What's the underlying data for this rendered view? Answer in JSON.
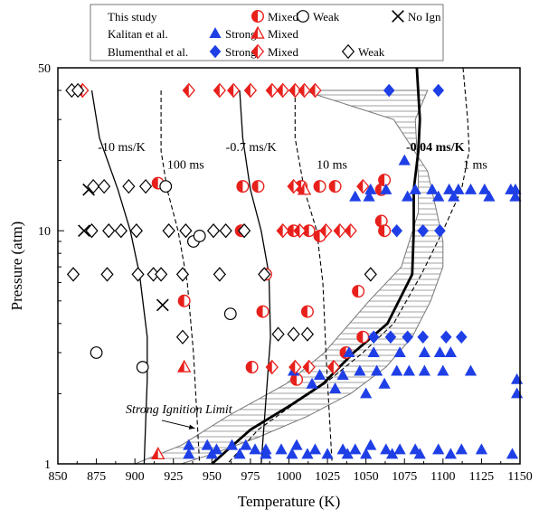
{
  "chart_data": {
    "type": "scatter",
    "title": "",
    "xlabel": "Temperature (K)",
    "ylabel": "Pressure (atm)",
    "xlim": [
      850,
      1150
    ],
    "ylim": [
      1,
      50
    ],
    "yscale": "log",
    "xticks": [
      850,
      875,
      900,
      925,
      950,
      975,
      1000,
      1025,
      1050,
      1075,
      1100,
      1125,
      1150
    ],
    "yticks": [
      1,
      10,
      50
    ],
    "grid": false,
    "legend": {
      "placement": "top",
      "groups": [
        {
          "label": "This study",
          "entries": [
            {
              "marker": "circle-half",
              "color": "#e8201c",
              "label": "Mixed"
            },
            {
              "marker": "circle-open",
              "color": "#000000",
              "label": "Weak"
            },
            {
              "marker": "x",
              "color": "#000000",
              "label": "No Ign"
            }
          ]
        },
        {
          "label": "Kalitan et al.",
          "entries": [
            {
              "marker": "triangle",
              "color": "#1f3fe6",
              "label": "Strong"
            },
            {
              "marker": "triangle-half",
              "color": "#e8201c",
              "label": "Mixed"
            }
          ]
        },
        {
          "label": "Blumenthal et al.",
          "entries": [
            {
              "marker": "diamond",
              "color": "#1f3fe6",
              "label": "Strong"
            },
            {
              "marker": "diamond-half",
              "color": "#e8201c",
              "label": "Mixed"
            },
            {
              "marker": "diamond-open",
              "color": "#000000",
              "label": "Weak"
            }
          ]
        }
      ]
    },
    "annotations": [
      {
        "text": "-10 ms/K",
        "x": 876,
        "y": 22
      },
      {
        "text": "100 ms",
        "x": 921,
        "y": 18.5
      },
      {
        "text": "-0.7 ms/K",
        "x": 959,
        "y": 22
      },
      {
        "text": "10 ms",
        "x": 1018,
        "y": 18.5
      },
      {
        "text": "-0.04 ms/K",
        "x": 1076,
        "y": 22,
        "bold": true
      },
      {
        "text": "1 ms",
        "x": 1113,
        "y": 18.5
      },
      {
        "text": "Strong Ignition Limit",
        "x": 894,
        "y": 1.65,
        "italic": true
      }
    ],
    "series": [
      {
        "name": "This study Mixed",
        "marker": "circle-half",
        "color": "#e8201c",
        "points": [
          [
            915,
            16
          ],
          [
            970,
            15.5
          ],
          [
            980,
            15.5
          ],
          [
            1008,
            15.5
          ],
          [
            1020,
            15.5
          ],
          [
            1030,
            15.5
          ],
          [
            1060,
            15
          ],
          [
            1062,
            16.5
          ],
          [
            969,
            10
          ],
          [
            1003,
            10
          ],
          [
            1013,
            10
          ],
          [
            1020,
            9.5
          ],
          [
            1060,
            11
          ],
          [
            1062,
            10
          ],
          [
            985,
            6.5
          ],
          [
            932,
            5
          ],
          [
            983,
            4.5
          ],
          [
            1012,
            4.5
          ],
          [
            1045,
            5.5
          ],
          [
            1048,
            3.5
          ],
          [
            1037,
            3
          ],
          [
            976,
            2.6
          ],
          [
            1005,
            2.3
          ]
        ]
      },
      {
        "name": "This study Weak",
        "marker": "circle-open",
        "color": "#000000",
        "points": [
          [
            920,
            15.5
          ],
          [
            938,
            9
          ],
          [
            942,
            9.5
          ],
          [
            875,
            3
          ],
          [
            905,
            2.6
          ],
          [
            962,
            4.4
          ]
        ]
      },
      {
        "name": "This study No Ign",
        "marker": "x",
        "color": "#000000",
        "points": [
          [
            870,
            15
          ],
          [
            867,
            10
          ],
          [
            918,
            4.8
          ]
        ]
      },
      {
        "name": "Kalitan et al. Strong",
        "marker": "triangle",
        "color": "#1f3fe6",
        "points": [
          [
            1075,
            20
          ],
          [
            1053,
            15
          ],
          [
            1063,
            15
          ],
          [
            1082,
            15
          ],
          [
            1093,
            15
          ],
          [
            1104,
            15
          ],
          [
            1110,
            15
          ],
          [
            1118,
            15
          ],
          [
            1127,
            15
          ],
          [
            1144,
            15
          ],
          [
            1147,
            15
          ],
          [
            1043,
            14
          ],
          [
            1052,
            14
          ],
          [
            1077,
            14
          ],
          [
            1097,
            14
          ],
          [
            1107,
            14
          ],
          [
            1130,
            14
          ],
          [
            1147,
            14
          ],
          [
            1039,
            3
          ],
          [
            1055,
            3
          ],
          [
            1072,
            3
          ],
          [
            1088,
            3
          ],
          [
            1098,
            3
          ],
          [
            1105,
            3
          ],
          [
            1003,
            2.5
          ],
          [
            1020,
            2.4
          ],
          [
            1035,
            2.4
          ],
          [
            1046,
            2.5
          ],
          [
            1057,
            2.5
          ],
          [
            1070,
            2.5
          ],
          [
            1078,
            2.5
          ],
          [
            1088,
            2.5
          ],
          [
            1100,
            2.5
          ],
          [
            1118,
            2.5
          ],
          [
            1148,
            2.3
          ],
          [
            1148,
            2.0
          ],
          [
            1015,
            2.2
          ],
          [
            1030,
            2.1
          ],
          [
            1050,
            2.0
          ],
          [
            1062,
            2.2
          ],
          [
            935,
            1.2
          ],
          [
            947,
            1.2
          ],
          [
            953,
            1.15
          ],
          [
            963,
            1.2
          ],
          [
            972,
            1.2
          ],
          [
            978,
            1.15
          ],
          [
            985,
            1.15
          ],
          [
            995,
            1.15
          ],
          [
            1005,
            1.2
          ],
          [
            1017,
            1.15
          ],
          [
            1035,
            1.15
          ],
          [
            1043,
            1.15
          ],
          [
            1053,
            1.2
          ],
          [
            1063,
            1.15
          ],
          [
            1072,
            1.15
          ],
          [
            1082,
            1.15
          ],
          [
            1097,
            1.15
          ],
          [
            1112,
            1.15
          ],
          [
            1125,
            1.15
          ],
          [
            1145,
            1.1
          ],
          [
            935,
            1.1
          ],
          [
            950,
            1.1
          ],
          [
            968,
            1.1
          ],
          [
            985,
            1.1
          ],
          [
            1002,
            1.1
          ],
          [
            1012,
            1.1
          ],
          [
            1025,
            1.1
          ],
          [
            1038,
            1.1
          ],
          [
            1050,
            1.1
          ],
          [
            1067,
            1.1
          ],
          [
            1085,
            1.1
          ],
          [
            1105,
            1.1
          ]
        ]
      },
      {
        "name": "Kalitan et al. Mixed",
        "marker": "triangle-half",
        "color": "#e8201c",
        "points": [
          [
            932,
            2.6
          ],
          [
            1010,
            15
          ],
          [
            915,
            1.1
          ]
        ]
      },
      {
        "name": "Blumenthal et al. Strong",
        "marker": "diamond",
        "color": "#1f3fe6",
        "points": [
          [
            1065,
            40
          ],
          [
            1097,
            40
          ],
          [
            1070,
            10
          ],
          [
            1087,
            10
          ],
          [
            1098,
            10
          ],
          [
            1055,
            3.5
          ],
          [
            1066,
            3.5
          ],
          [
            1077,
            3.5
          ],
          [
            1087,
            3.5
          ],
          [
            1102,
            3.5
          ],
          [
            1112,
            3.5
          ]
        ]
      },
      {
        "name": "Blumenthal et al. Mixed",
        "marker": "diamond-half",
        "color": "#e8201c",
        "points": [
          [
            866,
            40
          ],
          [
            935,
            40
          ],
          [
            955,
            40
          ],
          [
            964,
            40
          ],
          [
            975,
            40
          ],
          [
            989,
            40
          ],
          [
            996,
            40
          ],
          [
            1004,
            40
          ],
          [
            1010,
            40
          ],
          [
            1017,
            40
          ],
          [
            996,
            10
          ],
          [
            1007,
            10
          ],
          [
            1024,
            10
          ],
          [
            1033,
            10
          ],
          [
            1040,
            10
          ],
          [
            1003,
            15.5
          ],
          [
            1048,
            15.5
          ],
          [
            1004,
            2.6
          ],
          [
            1013,
            2.6
          ],
          [
            989,
            2.6
          ],
          [
            1029,
            2.6
          ]
        ]
      },
      {
        "name": "Blumenthal et al. Weak",
        "marker": "diamond-open",
        "color": "#000000",
        "points": [
          [
            859,
            40
          ],
          [
            863,
            40
          ],
          [
            873,
            15.5
          ],
          [
            880,
            15.5
          ],
          [
            896,
            15.5
          ],
          [
            907,
            15.5
          ],
          [
            872,
            10
          ],
          [
            883,
            10
          ],
          [
            891,
            10
          ],
          [
            901,
            10
          ],
          [
            922,
            10
          ],
          [
            933,
            10
          ],
          [
            951,
            10
          ],
          [
            959,
            10
          ],
          [
            971,
            10
          ],
          [
            860,
            6.5
          ],
          [
            882,
            6.5
          ],
          [
            902,
            6.5
          ],
          [
            912,
            6.5
          ],
          [
            917,
            6.5
          ],
          [
            931,
            6.5
          ],
          [
            955,
            6.5
          ],
          [
            984,
            6.5
          ],
          [
            1053,
            6.5
          ],
          [
            993,
            3.6
          ],
          [
            1003,
            3.6
          ],
          [
            1012,
            3.6
          ],
          [
            931,
            3.5
          ]
        ]
      }
    ],
    "lines": [
      {
        "name": "-10 ms/K",
        "style": "solid",
        "points": [
          [
            872,
            40
          ],
          [
            877,
            25
          ],
          [
            889,
            15
          ],
          [
            897,
            10
          ],
          [
            903,
            6.5
          ],
          [
            908,
            3.5
          ],
          [
            908,
            2.3
          ],
          [
            906,
            1
          ]
        ]
      },
      {
        "name": "100 ms",
        "style": "dashed",
        "points": [
          [
            917,
            40
          ],
          [
            917,
            22
          ],
          [
            921,
            15
          ],
          [
            928,
            10
          ],
          [
            934,
            6
          ],
          [
            938,
            3
          ],
          [
            942,
            1
          ]
        ]
      },
      {
        "name": "-0.7 ms/K",
        "style": "solid",
        "points": [
          [
            968,
            40
          ],
          [
            970,
            25
          ],
          [
            975,
            15
          ],
          [
            982,
            10
          ],
          [
            987,
            6.5
          ],
          [
            988,
            3.5
          ],
          [
            986,
            2.3
          ],
          [
            982,
            1
          ]
        ]
      },
      {
        "name": "10 ms",
        "style": "dashed",
        "points": [
          [
            1004,
            40
          ],
          [
            1004,
            25
          ],
          [
            1010,
            15
          ],
          [
            1018,
            10
          ],
          [
            1022,
            6
          ],
          [
            1024,
            3
          ],
          [
            1028,
            1
          ]
        ]
      },
      {
        "name": "-0.04 ms/K",
        "style": "solid-thick",
        "points": [
          [
            1083,
            50
          ],
          [
            1085,
            30
          ],
          [
            1084,
            22
          ],
          [
            1081,
            15
          ],
          [
            1081,
            10
          ],
          [
            1080,
            6.5
          ],
          [
            1064,
            4
          ],
          [
            1042,
            3
          ],
          [
            1022,
            2.2
          ],
          [
            1002,
            1.8
          ],
          [
            975,
            1.4
          ],
          [
            950,
            1
          ]
        ]
      },
      {
        "name": "1 ms",
        "style": "dashed",
        "points": [
          [
            1113,
            50
          ],
          [
            1116,
            30
          ],
          [
            1117,
            22
          ],
          [
            1112,
            15
          ],
          [
            1100,
            10
          ],
          [
            1086,
            6.5
          ],
          [
            1068,
            4
          ],
          [
            1048,
            3
          ],
          [
            1023,
            2.2
          ],
          [
            1003,
            1.8
          ],
          [
            980,
            1.4
          ],
          [
            960,
            1
          ]
        ]
      }
    ],
    "strong_ignition_region": [
      [
        1009,
        40
      ],
      [
        1090,
        40
      ],
      [
        1082,
        30
      ],
      [
        1084,
        17
      ],
      [
        1084,
        12
      ],
      [
        1073,
        7
      ],
      [
        1052,
        5
      ],
      [
        1023,
        3
      ],
      [
        998,
        2.2
      ],
      [
        960,
        1.6
      ],
      [
        930,
        1.2
      ],
      [
        900,
        1
      ],
      [
        930,
        1
      ],
      [
        950,
        1.1
      ],
      [
        980,
        1.3
      ],
      [
        1012,
        1.6
      ],
      [
        1040,
        2
      ],
      [
        1063,
        2.6
      ],
      [
        1080,
        3.5
      ],
      [
        1092,
        5
      ],
      [
        1100,
        7
      ],
      [
        1100,
        9
      ],
      [
        1096,
        12
      ],
      [
        1090,
        18
      ],
      [
        1068,
        30
      ]
    ]
  }
}
